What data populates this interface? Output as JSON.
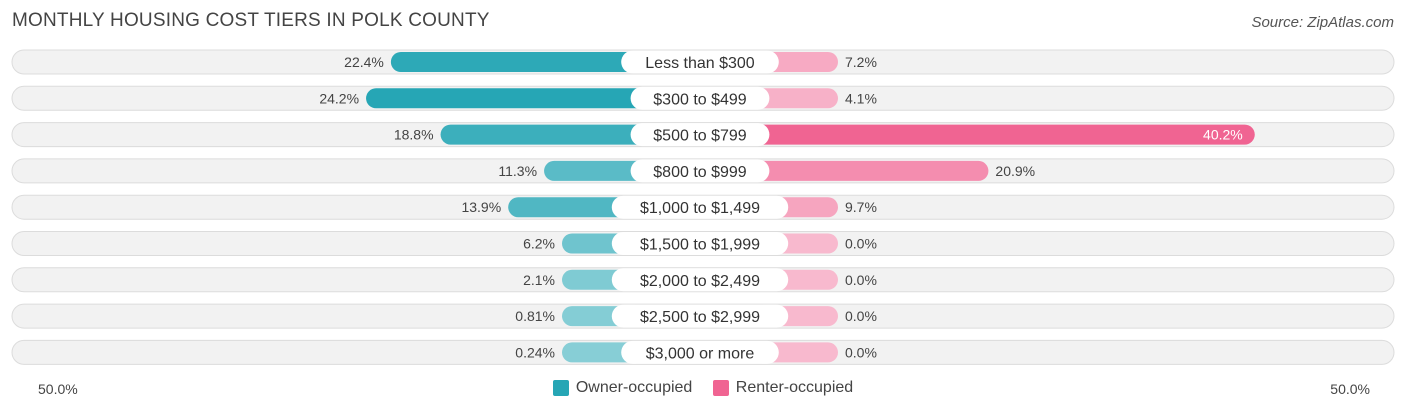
{
  "header": {
    "title": "MONTHLY HOUSING COST TIERS IN POLK COUNTY",
    "source": "Source: ZipAtlas.com"
  },
  "legend": {
    "owner_label": "Owner-occupied",
    "renter_label": "Renter-occupied"
  },
  "axis": {
    "left_label": "50.0%",
    "right_label": "50.0%"
  },
  "chart_data": {
    "type": "bar",
    "orientation": "horizontal-diverging",
    "title": "MONTHLY HOUSING COST TIERS IN POLK COUNTY",
    "categories": [
      "Less than $300",
      "$300 to $499",
      "$500 to $799",
      "$800 to $999",
      "$1,000 to $1,499",
      "$1,500 to $1,999",
      "$2,000 to $2,499",
      "$2,500 to $2,999",
      "$3,000 or more"
    ],
    "series": [
      {
        "name": "Owner-occupied",
        "color": "#26a6b5",
        "values": [
          22.4,
          24.2,
          18.8,
          11.3,
          13.9,
          6.2,
          2.1,
          0.81,
          0.24
        ],
        "labels": [
          "22.4%",
          "24.2%",
          "18.8%",
          "11.3%",
          "13.9%",
          "6.2%",
          "2.1%",
          "0.81%",
          "0.24%"
        ]
      },
      {
        "name": "Renter-occupied",
        "color": "#f06492",
        "values": [
          7.2,
          4.1,
          40.2,
          20.9,
          9.7,
          0.0,
          0.0,
          0.0,
          0.0
        ],
        "labels": [
          "7.2%",
          "4.1%",
          "40.2%",
          "20.9%",
          "9.7%",
          "0.0%",
          "0.0%",
          "0.0%",
          "0.0%"
        ]
      }
    ],
    "xlim": [
      -50,
      50
    ],
    "legend_position": "bottom-center"
  }
}
